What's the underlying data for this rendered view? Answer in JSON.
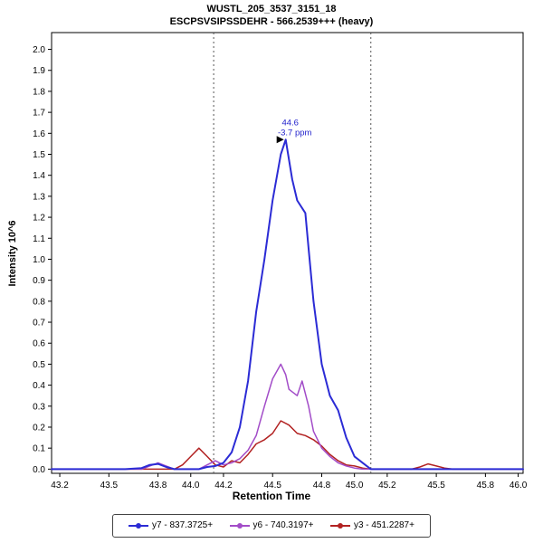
{
  "header": {
    "title": "WUSTL_205_3537_3151_18",
    "subtitle": "ESCPSVSIPSSDEHR - 566.2539+++ (heavy)"
  },
  "chart_data": {
    "type": "line",
    "title": "WUSTL_205_3537_3151_18",
    "subtitle": "ESCPSVSIPSSDEHR - 566.2539+++ (heavy)",
    "xlabel": "Retention Time",
    "ylabel": "Intensity 10^6",
    "xlim": [
      43.15,
      46.03
    ],
    "ylim": [
      -0.02,
      2.08
    ],
    "grid": false,
    "legend_position": "bottom",
    "x_ticks": [
      43.2,
      43.5,
      43.8,
      44.0,
      44.2,
      44.5,
      44.8,
      45.0,
      45.2,
      45.5,
      45.8,
      46.0
    ],
    "y_ticks": [
      0.0,
      0.1,
      0.2,
      0.3,
      0.4,
      0.5,
      0.6,
      0.7,
      0.8,
      0.9,
      1.0,
      1.1,
      1.2,
      1.3,
      1.4,
      1.5,
      1.6,
      1.7,
      1.8,
      1.9,
      2.0
    ],
    "peak_boundaries": [
      44.14,
      45.1
    ],
    "annotation": {
      "rt_label": "44.6",
      "ppm_label": "-3.7 ppm",
      "x": 44.58,
      "y": 1.57,
      "color": "#2222cc"
    },
    "series": [
      {
        "name": "y7 - 837.3725+",
        "color": "#2b2bd5",
        "points": [
          [
            43.15,
            0
          ],
          [
            43.6,
            0
          ],
          [
            43.7,
            0.005
          ],
          [
            43.75,
            0.02
          ],
          [
            43.8,
            0.025
          ],
          [
            43.85,
            0.01
          ],
          [
            43.9,
            0
          ],
          [
            44.05,
            0
          ],
          [
            44.1,
            0.01
          ],
          [
            44.15,
            0.015
          ],
          [
            44.2,
            0.03
          ],
          [
            44.25,
            0.08
          ],
          [
            44.3,
            0.2
          ],
          [
            44.35,
            0.42
          ],
          [
            44.4,
            0.75
          ],
          [
            44.45,
            1.0
          ],
          [
            44.5,
            1.28
          ],
          [
            44.55,
            1.5
          ],
          [
            44.58,
            1.57
          ],
          [
            44.62,
            1.38
          ],
          [
            44.65,
            1.28
          ],
          [
            44.7,
            1.22
          ],
          [
            44.72,
            1.05
          ],
          [
            44.75,
            0.8
          ],
          [
            44.8,
            0.5
          ],
          [
            44.85,
            0.35
          ],
          [
            44.9,
            0.28
          ],
          [
            44.95,
            0.15
          ],
          [
            45.0,
            0.06
          ],
          [
            45.05,
            0.03
          ],
          [
            45.1,
            0
          ],
          [
            46.03,
            0
          ]
        ]
      },
      {
        "name": "y6 - 740.3197+",
        "color": "#a24cc8",
        "points": [
          [
            43.15,
            0
          ],
          [
            43.7,
            0
          ],
          [
            43.75,
            0.015
          ],
          [
            43.8,
            0.03
          ],
          [
            43.85,
            0.015
          ],
          [
            43.9,
            0
          ],
          [
            44.05,
            0
          ],
          [
            44.1,
            0.02
          ],
          [
            44.15,
            0.04
          ],
          [
            44.2,
            0.02
          ],
          [
            44.25,
            0.03
          ],
          [
            44.3,
            0.05
          ],
          [
            44.35,
            0.09
          ],
          [
            44.4,
            0.16
          ],
          [
            44.45,
            0.3
          ],
          [
            44.5,
            0.43
          ],
          [
            44.55,
            0.5
          ],
          [
            44.58,
            0.45
          ],
          [
            44.6,
            0.38
          ],
          [
            44.65,
            0.35
          ],
          [
            44.68,
            0.42
          ],
          [
            44.72,
            0.3
          ],
          [
            44.75,
            0.18
          ],
          [
            44.8,
            0.1
          ],
          [
            44.85,
            0.06
          ],
          [
            44.9,
            0.03
          ],
          [
            44.95,
            0.015
          ],
          [
            45.0,
            0.005
          ],
          [
            45.05,
            0
          ],
          [
            46.03,
            0
          ]
        ]
      },
      {
        "name": "y3 - 451.2287+",
        "color": "#b22222",
        "points": [
          [
            43.15,
            0
          ],
          [
            43.9,
            0
          ],
          [
            43.95,
            0.02
          ],
          [
            44.0,
            0.06
          ],
          [
            44.05,
            0.1
          ],
          [
            44.1,
            0.06
          ],
          [
            44.15,
            0.02
          ],
          [
            44.2,
            0.01
          ],
          [
            44.25,
            0.04
          ],
          [
            44.3,
            0.03
          ],
          [
            44.35,
            0.07
          ],
          [
            44.4,
            0.12
          ],
          [
            44.45,
            0.14
          ],
          [
            44.5,
            0.17
          ],
          [
            44.55,
            0.23
          ],
          [
            44.6,
            0.21
          ],
          [
            44.65,
            0.17
          ],
          [
            44.7,
            0.16
          ],
          [
            44.75,
            0.14
          ],
          [
            44.8,
            0.11
          ],
          [
            44.85,
            0.07
          ],
          [
            44.9,
            0.04
          ],
          [
            44.95,
            0.02
          ],
          [
            45.0,
            0.015
          ],
          [
            45.05,
            0.005
          ],
          [
            45.1,
            0
          ],
          [
            45.35,
            0
          ],
          [
            45.4,
            0.01
          ],
          [
            45.45,
            0.025
          ],
          [
            45.5,
            0.015
          ],
          [
            45.55,
            0.005
          ],
          [
            45.6,
            0
          ],
          [
            46.03,
            0
          ]
        ]
      }
    ]
  }
}
